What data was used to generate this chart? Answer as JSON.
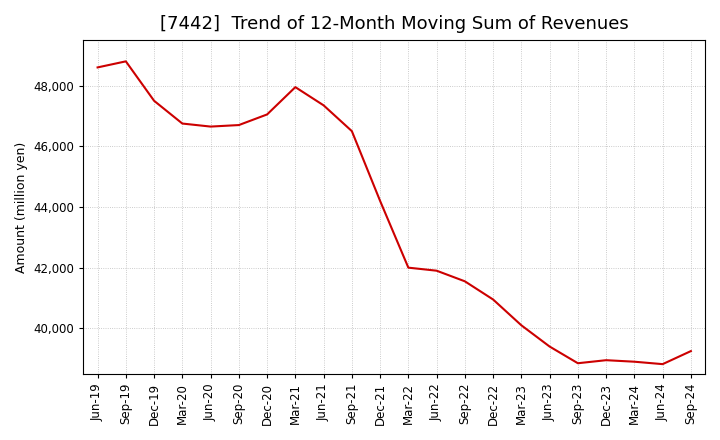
{
  "title": "[7442]  Trend of 12-Month Moving Sum of Revenues",
  "ylabel": "Amount (million yen)",
  "line_color": "#cc0000",
  "background_color": "#ffffff",
  "plot_bg_color": "#ffffff",
  "grid_color": "#aaaaaa",
  "x_labels": [
    "Jun-19",
    "Sep-19",
    "Dec-19",
    "Mar-20",
    "Jun-20",
    "Sep-20",
    "Dec-20",
    "Mar-21",
    "Jun-21",
    "Sep-21",
    "Dec-21",
    "Mar-22",
    "Jun-22",
    "Sep-22",
    "Dec-22",
    "Mar-23",
    "Jun-23",
    "Sep-23",
    "Dec-23",
    "Mar-24",
    "Jun-24",
    "Sep-24"
  ],
  "y_values": [
    48600,
    48800,
    47500,
    46750,
    46650,
    46700,
    47050,
    47950,
    47350,
    46500,
    44200,
    42000,
    41900,
    41550,
    40950,
    40100,
    39400,
    38850,
    38950,
    38900,
    38820,
    39250
  ],
  "ylim_min": 38500,
  "ylim_max": 49500,
  "yticks": [
    40000,
    42000,
    44000,
    46000,
    48000
  ],
  "title_fontsize": 13,
  "label_fontsize": 9,
  "tick_fontsize": 8.5
}
